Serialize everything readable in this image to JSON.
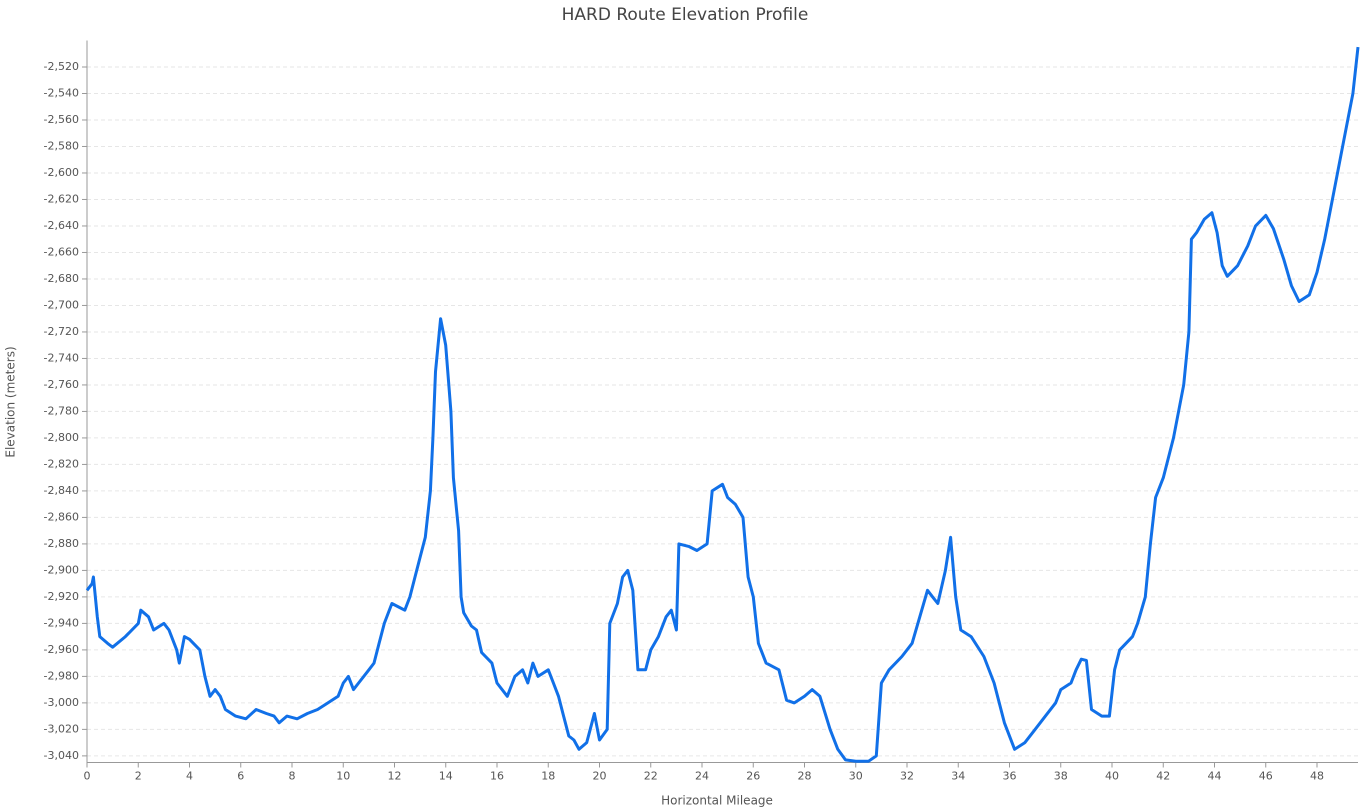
{
  "chart_data": {
    "type": "line",
    "title": "HARD Route Elevation Profile",
    "x_label": "Horizontal Mileage",
    "y_label": "Elevation (meters)",
    "color": "#1170e8",
    "grid": true,
    "x": [
      0,
      0.2,
      0.25,
      0.4,
      0.5,
      0.8,
      1.0,
      1.5,
      2.0,
      2.1,
      2.4,
      2.6,
      3.0,
      3.2,
      3.5,
      3.6,
      3.8,
      4.0,
      4.4,
      4.6,
      4.8,
      5.0,
      5.2,
      5.4,
      5.8,
      6.2,
      6.6,
      7.0,
      7.3,
      7.5,
      7.8,
      8.2,
      8.6,
      9.0,
      9.4,
      9.8,
      10.0,
      10.2,
      10.4,
      10.6,
      11.0,
      11.2,
      11.4,
      11.6,
      11.9,
      12.2,
      12.4,
      12.6,
      12.8,
      13.0,
      13.2,
      13.4,
      13.5,
      13.6,
      13.8,
      14.0,
      14.2,
      14.3,
      14.5,
      14.6,
      14.7,
      15.0,
      15.2,
      15.4,
      15.8,
      16.0,
      16.4,
      16.7,
      17.0,
      17.2,
      17.4,
      17.6,
      18.0,
      18.2,
      18.4,
      18.6,
      18.8,
      19.0,
      19.2,
      19.5,
      19.8,
      20.0,
      20.3,
      20.4,
      20.7,
      20.9,
      21.1,
      21.3,
      21.5,
      21.8,
      22.0,
      22.3,
      22.6,
      22.8,
      23.0,
      23.1,
      23.5,
      23.8,
      24.2,
      24.4,
      24.8,
      25.0,
      25.3,
      25.6,
      25.8,
      26.0,
      26.2,
      26.5,
      27.0,
      27.3,
      27.6,
      28.0,
      28.3,
      28.6,
      29.0,
      29.3,
      29.6,
      30.0,
      30.5,
      30.8,
      31.0,
      31.3,
      31.8,
      32.2,
      32.5,
      32.8,
      33.0,
      33.2,
      33.5,
      33.7,
      33.9,
      34.1,
      34.5,
      35.0,
      35.4,
      35.8,
      36.2,
      36.6,
      37.0,
      37.4,
      37.8,
      38.0,
      38.4,
      38.6,
      38.8,
      39.0,
      39.2,
      39.6,
      39.9,
      40.1,
      40.3,
      40.8,
      41.0,
      41.3,
      41.5,
      41.7,
      42.0,
      42.4,
      42.8,
      43.0,
      43.1,
      43.3,
      43.6,
      43.9,
      44.1,
      44.3,
      44.5,
      44.9,
      45.3,
      45.6,
      46.0,
      46.3,
      46.7,
      47.0,
      47.3,
      47.7,
      48.0,
      48.3,
      48.6,
      49.0,
      49.4,
      49.6
    ],
    "values": [
      -2915,
      -2910,
      -2905,
      -2935,
      -2950,
      -2955,
      -2958,
      -2950,
      -2940,
      -2930,
      -2935,
      -2945,
      -2940,
      -2945,
      -2960,
      -2970,
      -2950,
      -2952,
      -2960,
      -2980,
      -2995,
      -2990,
      -2995,
      -3005,
      -3010,
      -3012,
      -3005,
      -3008,
      -3010,
      -3015,
      -3010,
      -3012,
      -3008,
      -3005,
      -3000,
      -2995,
      -2985,
      -2980,
      -2990,
      -2985,
      -2975,
      -2970,
      -2955,
      -2940,
      -2925,
      -2928,
      -2930,
      -2920,
      -2905,
      -2890,
      -2875,
      -2840,
      -2800,
      -2750,
      -2710,
      -2730,
      -2780,
      -2830,
      -2870,
      -2920,
      -2932,
      -2942,
      -2945,
      -2962,
      -2970,
      -2985,
      -2995,
      -2980,
      -2975,
      -2985,
      -2970,
      -2980,
      -2975,
      -2985,
      -2995,
      -3010,
      -3025,
      -3028,
      -3035,
      -3030,
      -3008,
      -3028,
      -3020,
      -2940,
      -2925,
      -2905,
      -2900,
      -2915,
      -2975,
      -2975,
      -2960,
      -2950,
      -2935,
      -2930,
      -2945,
      -2880,
      -2882,
      -2885,
      -2880,
      -2840,
      -2835,
      -2845,
      -2850,
      -2860,
      -2905,
      -2920,
      -2955,
      -2970,
      -2975,
      -2998,
      -3000,
      -2995,
      -2990,
      -2995,
      -3020,
      -3035,
      -3043,
      -3044,
      -3044,
      -3040,
      -2985,
      -2975,
      -2965,
      -2955,
      -2935,
      -2915,
      -2920,
      -2925,
      -2900,
      -2875,
      -2920,
      -2945,
      -2950,
      -2965,
      -2985,
      -3015,
      -3035,
      -3030,
      -3020,
      -3010,
      -3000,
      -2990,
      -2985,
      -2975,
      -2967,
      -2968,
      -3005,
      -3010,
      -3010,
      -2975,
      -2960,
      -2950,
      -2940,
      -2920,
      -2880,
      -2845,
      -2830,
      -2800,
      -2760,
      -2720,
      -2650,
      -2645,
      -2635,
      -2630,
      -2645,
      -2670,
      -2678,
      -2670,
      -2655,
      -2640,
      -2632,
      -2642,
      -2665,
      -2685,
      -2697,
      -2692,
      -2675,
      -2650,
      -2620,
      -2580,
      -2540,
      -2505
    ],
    "xlim": [
      0,
      49.6
    ],
    "ylim": [
      -3045,
      -2500
    ],
    "xticks": [
      0,
      2,
      4,
      6,
      8,
      10,
      12,
      14,
      16,
      18,
      20,
      22,
      24,
      26,
      28,
      30,
      32,
      34,
      36,
      38,
      40,
      42,
      44,
      46,
      48
    ],
    "yticks": [
      {
        "value": -3040,
        "label": "-3,040"
      },
      {
        "value": -3020,
        "label": "-3,020"
      },
      {
        "value": -3000,
        "label": "-3,000"
      },
      {
        "value": -2980,
        "label": "-2,980"
      },
      {
        "value": -2960,
        "label": "-2,960"
      },
      {
        "value": -2940,
        "label": "-2,940"
      },
      {
        "value": -2920,
        "label": "-2,920"
      },
      {
        "value": -2900,
        "label": "-2,900"
      },
      {
        "value": -2880,
        "label": "-2,880"
      },
      {
        "value": -2860,
        "label": "-2,860"
      },
      {
        "value": -2840,
        "label": "-2,840"
      },
      {
        "value": -2820,
        "label": "-2,820"
      },
      {
        "value": -2800,
        "label": "-2,800"
      },
      {
        "value": -2780,
        "label": "-2,780"
      },
      {
        "value": -2760,
        "label": "-2,760"
      },
      {
        "value": -2740,
        "label": "-2,740"
      },
      {
        "value": -2720,
        "label": "-2,720"
      },
      {
        "value": -2700,
        "label": "-2,700"
      },
      {
        "value": -2680,
        "label": "-2,680"
      },
      {
        "value": -2660,
        "label": "-2,660"
      },
      {
        "value": -2640,
        "label": "-2,640"
      },
      {
        "value": -2620,
        "label": "-2,620"
      },
      {
        "value": -2600,
        "label": "-2,600"
      },
      {
        "value": -2580,
        "label": "-2,580"
      },
      {
        "value": -2560,
        "label": "-2,560"
      },
      {
        "value": -2540,
        "label": "-2,540"
      },
      {
        "value": -2520,
        "label": "-2,520"
      }
    ]
  }
}
